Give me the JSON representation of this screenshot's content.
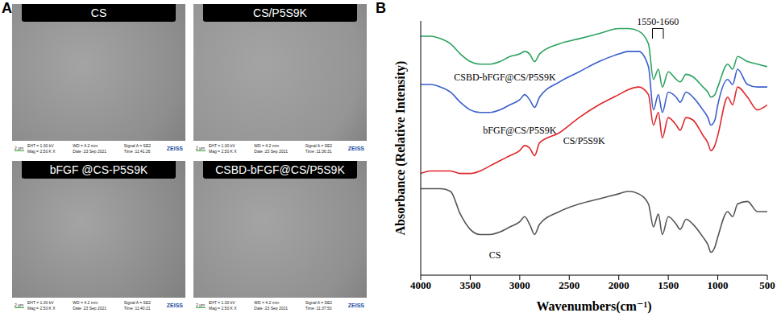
{
  "panel_labels": [
    "A",
    "B"
  ],
  "images": [
    {
      "title": "CS",
      "scale_bar": "2 μm",
      "info": [
        "EHT = 1.00 kV",
        "WD = 4.2 mm",
        "Signal A = SE2",
        "Mag = 2.50 K X",
        "Date :23 Sep 2021",
        "Time :11:41:26"
      ],
      "logo": "ZEISS"
    },
    {
      "title": "CS/P5S9K",
      "scale_bar": "2 μm",
      "info": [
        "EHT = 1.00 kV",
        "WD = 4.2 mm",
        "Signal A = SE2",
        "Mag = 2.50 K X",
        "Date :23 Sep 2021",
        "Time :11:36:31"
      ],
      "logo": "ZEISS"
    },
    {
      "title": "bFGF @CS-P5S9K",
      "scale_bar": "2 μm",
      "info": [
        "EHT = 1.00 kV",
        "WD = 4.2 mm",
        "Signal A = SE2",
        "Mag = 2.50 K X",
        "Date :23 Sep 2021",
        "Time :11:40:21"
      ],
      "logo": "ZEISS"
    },
    {
      "title": "CSBD-bFGF@CS/P5S9K",
      "scale_bar": "2 μm",
      "info": [
        "EHT = 1.00 kV",
        "WD = 4.2 mm",
        "Signal A = SE2",
        "Mag = 2.50 K X",
        "Date :23 Sep 2021",
        "Time :11:37:50"
      ],
      "logo": "ZEISS"
    }
  ],
  "chart_data": {
    "type": "line",
    "x_label": "Wavenumbers(cm⁻¹)",
    "y_label": "Absorbance (Relative Intensity)",
    "x": [
      4000,
      3900,
      3800,
      3700,
      3600,
      3500,
      3400,
      3300,
      3200,
      3100,
      3000,
      2950,
      2900,
      2850,
      2800,
      2600,
      2400,
      2200,
      2000,
      1900,
      1800,
      1700,
      1650,
      1600,
      1560,
      1500,
      1420,
      1380,
      1320,
      1250,
      1150,
      1100,
      1070,
      1030,
      1000,
      900,
      850,
      800,
      700,
      600,
      500
    ],
    "xlim": [
      4000,
      500
    ],
    "xticks": [
      4000,
      3500,
      3000,
      2500,
      2000,
      1500,
      1000,
      500
    ],
    "ylim": [
      0,
      100
    ],
    "tick_labels": "x",
    "annotations": [
      {
        "text": "1550-1660",
        "x": [
          1660,
          1550
        ]
      }
    ],
    "series": [
      {
        "name": "CS",
        "color": "#555555",
        "values": [
          34,
          34,
          34,
          33,
          24,
          18,
          16,
          16,
          17,
          19,
          21,
          23,
          20,
          16,
          20,
          25,
          28,
          30,
          32,
          33,
          32,
          28,
          19,
          24,
          16,
          23,
          20,
          18,
          22,
          20,
          15,
          12,
          9,
          11,
          15,
          25,
          23,
          28,
          29,
          25,
          25
        ]
      },
      {
        "name": "CS/P5S9K",
        "color": "#e0262b",
        "values": [
          40,
          41,
          41,
          41,
          40,
          40,
          41,
          43,
          45,
          47,
          49,
          51,
          50,
          47,
          52,
          56,
          62,
          67,
          71,
          73,
          74,
          71,
          59,
          64,
          54,
          62,
          59,
          57,
          62,
          61,
          55,
          52,
          49,
          51,
          55,
          70,
          67,
          74,
          70,
          65,
          67
        ]
      },
      {
        "name": "bFGF@CS/P5S9K",
        "color": "#3a5fcd",
        "values": [
          75,
          75,
          74,
          72,
          68,
          65,
          64,
          64,
          65,
          67,
          69,
          71,
          69,
          66,
          70,
          76,
          80,
          84,
          87,
          88,
          88,
          82,
          65,
          71,
          64,
          72,
          70,
          68,
          72,
          70,
          65,
          62,
          59,
          61,
          67,
          77,
          75,
          81,
          75,
          74,
          74
        ]
      },
      {
        "name": "CSBD-bFGF@CS/P5S9K",
        "color": "#2ca25f",
        "values": [
          94,
          94,
          93,
          91,
          87,
          84,
          83,
          83,
          84,
          86,
          87,
          88,
          87,
          84,
          87,
          91,
          93,
          95,
          97,
          97,
          96,
          91,
          77,
          81,
          74,
          80,
          77,
          76,
          79,
          78,
          74,
          72,
          70,
          71,
          74,
          83,
          81,
          86,
          84,
          83,
          82
        ]
      }
    ]
  }
}
